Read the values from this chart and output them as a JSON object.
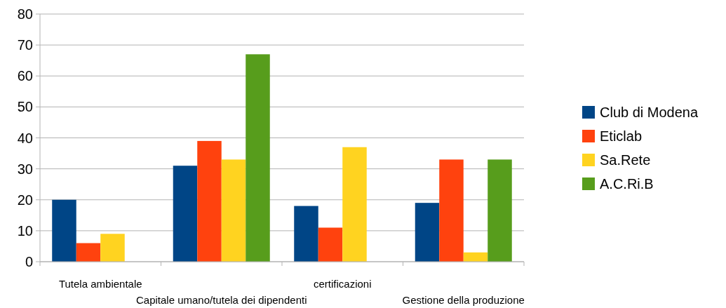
{
  "chart_data": {
    "type": "bar",
    "categories": [
      "Tutela ambientale",
      "Capitale umano/tutela dei dipendenti",
      "certificazioni",
      "Gestione della produzione"
    ],
    "series": [
      {
        "name": "Club di Modena",
        "color": "#004586",
        "values": [
          20,
          31,
          18,
          19
        ]
      },
      {
        "name": "Eticlab",
        "color": "#ff420e",
        "values": [
          6,
          39,
          11,
          33
        ]
      },
      {
        "name": "Sa.Rete",
        "color": "#ffd320",
        "values": [
          9,
          33,
          37,
          3
        ]
      },
      {
        "name": "A.C.Ri.B",
        "color": "#579d1c",
        "values": [
          null,
          67,
          null,
          33
        ]
      }
    ],
    "ylim": [
      0,
      80
    ],
    "yticks": [
      0,
      10,
      20,
      30,
      40,
      50,
      60,
      70,
      80
    ],
    "grid": "y",
    "legend": "right"
  }
}
